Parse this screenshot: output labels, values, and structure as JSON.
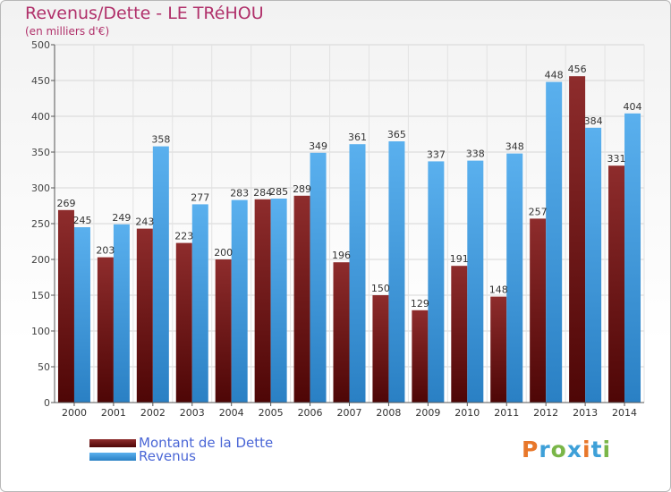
{
  "title": "Revenus/Dette - LE TRéHOU",
  "subtitle": "(en milliers d'€)",
  "logo": {
    "text": "Proxiti",
    "colors": [
      "#e8772a",
      "#3ea0d8",
      "#7ab648",
      "#3ea0d8",
      "#e8772a",
      "#3ea0d8",
      "#7ab648"
    ]
  },
  "chart_data": {
    "type": "bar",
    "categories": [
      "2000",
      "2001",
      "2002",
      "2003",
      "2004",
      "2005",
      "2006",
      "2007",
      "2008",
      "2009",
      "2010",
      "2011",
      "2012",
      "2013",
      "2014"
    ],
    "series": [
      {
        "name": "Montant de la Dette",
        "color": "#7a1d1d",
        "values": [
          269,
          203,
          243,
          223,
          200,
          284,
          289,
          196,
          150,
          129,
          191,
          148,
          257,
          456,
          331
        ]
      },
      {
        "name": "Revenus",
        "color": "#3e9de2",
        "values": [
          245,
          249,
          358,
          277,
          283,
          285,
          349,
          361,
          365,
          337,
          338,
          348,
          448,
          384,
          404
        ]
      }
    ],
    "y_ticks": [
      "0",
      "50",
      "100",
      "150",
      "200",
      "250",
      "300",
      "350",
      "400",
      "450",
      "500"
    ],
    "ylim": [
      0,
      500
    ],
    "grid": true,
    "legend_position": "bottom-left"
  }
}
